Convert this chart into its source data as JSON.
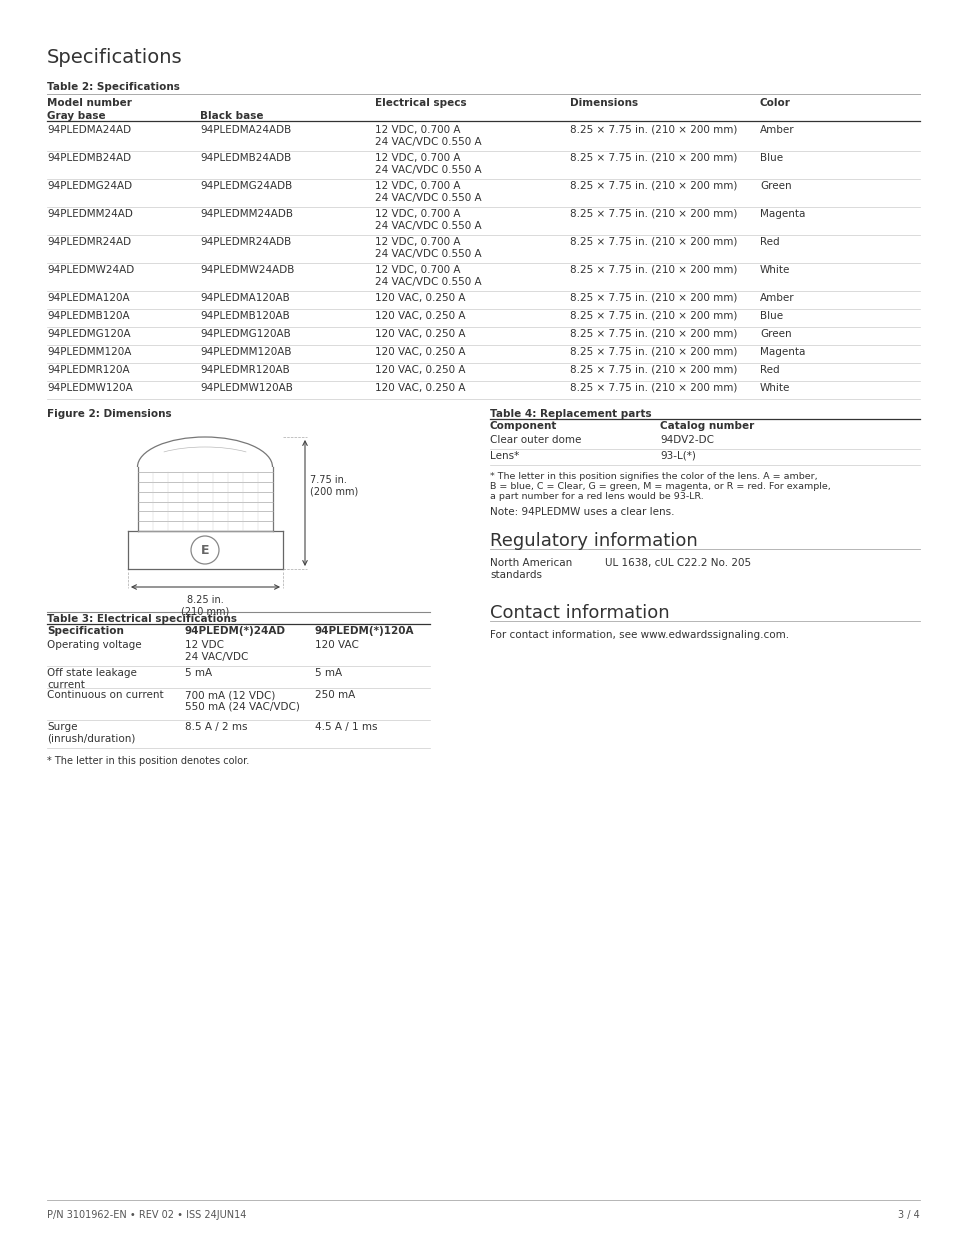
{
  "title": "Specifications",
  "bg_color": "#ffffff",
  "text_color": "#555555",
  "black_color": "#333333",
  "footer_left": "P/N 3101962-EN • REV 02 • ISS 24JUN14",
  "footer_right": "3 / 4",
  "table2_title": "Table 2: Specifications",
  "table2_rows": [
    [
      "94PLEDMA24AD",
      "94PLEDMA24ADB",
      "12 VDC, 0.700 A\n24 VAC/VDC 0.550 A",
      "8.25 × 7.75 in. (210 × 200 mm)",
      "Amber"
    ],
    [
      "94PLEDMB24AD",
      "94PLEDMB24ADB",
      "12 VDC, 0.700 A\n24 VAC/VDC 0.550 A",
      "8.25 × 7.75 in. (210 × 200 mm)",
      "Blue"
    ],
    [
      "94PLEDMG24AD",
      "94PLEDMG24ADB",
      "12 VDC, 0.700 A\n24 VAC/VDC 0.550 A",
      "8.25 × 7.75 in. (210 × 200 mm)",
      "Green"
    ],
    [
      "94PLEDMM24AD",
      "94PLEDMM24ADB",
      "12 VDC, 0.700 A\n24 VAC/VDC 0.550 A",
      "8.25 × 7.75 in. (210 × 200 mm)",
      "Magenta"
    ],
    [
      "94PLEDMR24AD",
      "94PLEDMR24ADB",
      "12 VDC, 0.700 A\n24 VAC/VDC 0.550 A",
      "8.25 × 7.75 in. (210 × 200 mm)",
      "Red"
    ],
    [
      "94PLEDMW24AD",
      "94PLEDMW24ADB",
      "12 VDC, 0.700 A\n24 VAC/VDC 0.550 A",
      "8.25 × 7.75 in. (210 × 200 mm)",
      "White"
    ],
    [
      "94PLEDMA120A",
      "94PLEDMA120AB",
      "120 VAC, 0.250 A",
      "8.25 × 7.75 in. (210 × 200 mm)",
      "Amber"
    ],
    [
      "94PLEDMB120A",
      "94PLEDMB120AB",
      "120 VAC, 0.250 A",
      "8.25 × 7.75 in. (210 × 200 mm)",
      "Blue"
    ],
    [
      "94PLEDMG120A",
      "94PLEDMG120AB",
      "120 VAC, 0.250 A",
      "8.25 × 7.75 in. (210 × 200 mm)",
      "Green"
    ],
    [
      "94PLEDMM120A",
      "94PLEDMM120AB",
      "120 VAC, 0.250 A",
      "8.25 × 7.75 in. (210 × 200 mm)",
      "Magenta"
    ],
    [
      "94PLEDMR120A",
      "94PLEDMR120AB",
      "120 VAC, 0.250 A",
      "8.25 × 7.75 in. (210 × 200 mm)",
      "Red"
    ],
    [
      "94PLEDMW120A",
      "94PLEDMW120AB",
      "120 VAC, 0.250 A",
      "8.25 × 7.75 in. (210 × 200 mm)",
      "White"
    ]
  ],
  "figure2_title": "Figure 2: Dimensions",
  "table4_title": "Table 4: Replacement parts",
  "table4_headers": [
    "Component",
    "Catalog number"
  ],
  "table4_rows": [
    [
      "Clear outer dome",
      "94DV2-DC"
    ],
    [
      "Lens*",
      "93-L(*)"
    ]
  ],
  "table4_note1": "* The letter in this position signifies the color of the lens. A = amber,",
  "table4_note2": "B = blue, C = Clear, G = green, M = magenta, or R = red. For example,",
  "table4_note3": "a part number for a red lens would be 93-LR.",
  "table4_note4": "Note: 94PLEDMW uses a clear lens.",
  "reg_title": "Regulatory information",
  "reg_label": "North American\nstandards",
  "reg_value": "UL 1638, cUL C22.2 No. 205",
  "contact_title": "Contact information",
  "contact_text": "For contact information, see www.edwardssignaling.com.",
  "table3_title": "Table 3: Electrical specifications",
  "table3_headers": [
    "Specification",
    "94PLEDM(*)24AD",
    "94PLEDM(*)120A"
  ],
  "table3_rows": [
    [
      "Operating voltage",
      "12 VDC\n24 VAC/VDC",
      "120 VAC"
    ],
    [
      "Off state leakage\ncurrent",
      "5 mA",
      "5 mA"
    ],
    [
      "Continuous on current",
      "700 mA (12 VDC)\n550 mA (24 VAC/VDC)",
      "250 mA"
    ],
    [
      "Surge\n(inrush/duration)",
      "8.5 A / 2 ms",
      "4.5 A / 1 ms"
    ]
  ],
  "table3_note": "* The letter in this position denotes color.",
  "dim_width": "8.25 in.\n(210 mm)",
  "dim_height": "7.75 in.\n(200 mm)"
}
